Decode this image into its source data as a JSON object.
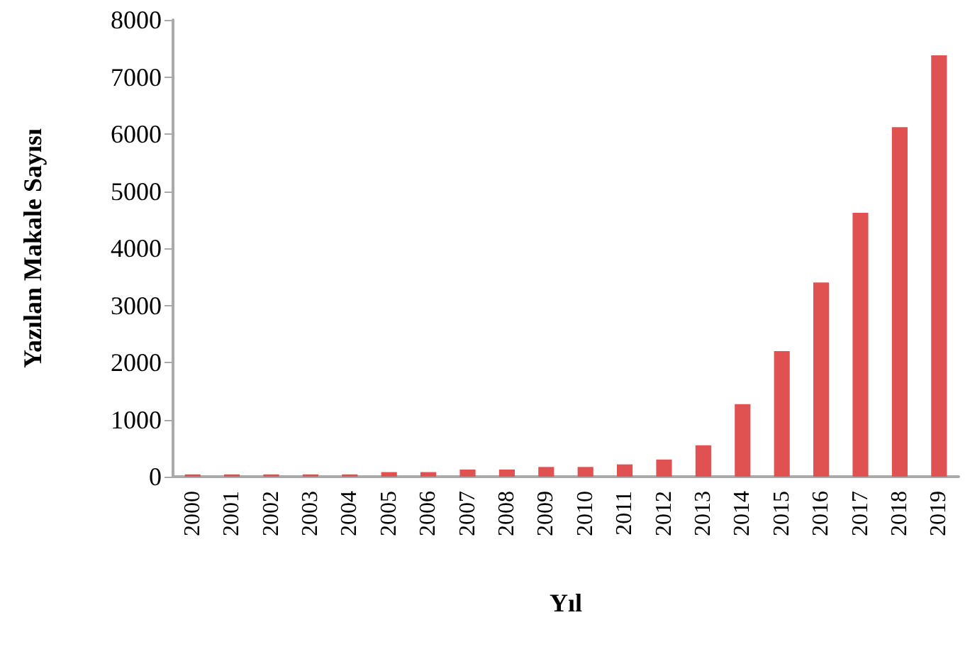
{
  "chart_data": {
    "type": "bar",
    "xlabel": "Yıl",
    "ylabel": "Yazılan Makale Sayısı",
    "categories": [
      "2000",
      "2001",
      "2002",
      "2003",
      "2004",
      "2005",
      "2006",
      "2007",
      "2008",
      "2009",
      "2010",
      "2011",
      "2012",
      "2013",
      "2014",
      "2015",
      "2016",
      "2017",
      "2018",
      "2019"
    ],
    "values": [
      40,
      40,
      40,
      40,
      40,
      80,
      80,
      125,
      125,
      170,
      170,
      215,
      300,
      550,
      1270,
      2200,
      3400,
      4620,
      6120,
      7380
    ],
    "color": "#e05252",
    "ylim": [
      0,
      8000
    ],
    "yticks": [
      0,
      1000,
      2000,
      3000,
      4000,
      5000,
      6000,
      7000,
      8000
    ],
    "grid": false
  }
}
